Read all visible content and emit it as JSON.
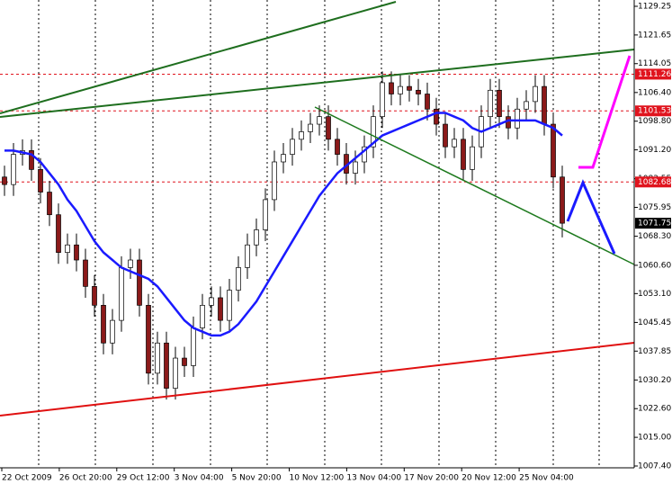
{
  "chart_data": {
    "type": "candlestick",
    "ylim": [
      1006.92,
      1130.92
    ],
    "yticks": [
      1129.25,
      1121.65,
      1114.05,
      {
        "value": 1106.4,
        "label": "1106.40"
      },
      {
        "value": 1098.8,
        "label": "1098.80"
      },
      {
        "value": 1091.2,
        "label": "1091.20"
      },
      1083.55,
      1075.95,
      {
        "value": 1068.3,
        "label": "1068.30"
      },
      {
        "value": 1060.6,
        "label": "1060.60"
      },
      {
        "value": 1053.1,
        "label": "1053.10"
      },
      1045.45,
      1037.85,
      {
        "value": 1030.2,
        "label": "1030.20"
      },
      {
        "value": 1022.6,
        "label": "1022.60"
      },
      {
        "value": 1015,
        "label": "1015.00"
      },
      {
        "value": 1007.4,
        "label": "1007.40"
      }
    ],
    "x_labels": [
      "22 Oct 2009",
      "26 Oct 20:00",
      "29 Oct 12:00",
      "3 Nov 04:00",
      "5 Nov 20:00",
      "10 Nov 12:00",
      "13 Nov 04:00",
      "17 Nov 20:00",
      "20 Nov 12:00",
      "25 Nov 04:00"
    ],
    "levels": [
      1111.26,
      1101.53,
      1082.68
    ],
    "last_price": 1071.75,
    "bull_color": "#ffffff",
    "bear_color": "#8b1a1a",
    "ma_color": "#1a1aff",
    "level_color": "#e0141e",
    "open": [
      1084,
      1082,
      1090,
      1091,
      1086,
      1080,
      1074,
      1064,
      1066,
      1062,
      1055,
      1050,
      1040,
      1046,
      1060,
      1062,
      1050,
      1032,
      1040,
      1028,
      1036,
      1034,
      1044,
      1050,
      1052,
      1046,
      1054,
      1060,
      1066,
      1070,
      1078,
      1088,
      1090,
      1094,
      1096,
      1098,
      1100,
      1094,
      1090,
      1085,
      1088,
      1092,
      1100,
      1109,
      1106,
      1108,
      1107,
      1106,
      1102,
      1098,
      1092,
      1094,
      1086,
      1092,
      1100,
      1107,
      1100,
      1097,
      1102,
      1104,
      1108,
      1098,
      1084
    ],
    "high": [
      1087,
      1093,
      1094,
      1094,
      1089,
      1083,
      1077,
      1069,
      1069,
      1065,
      1058,
      1053,
      1049,
      1063,
      1065,
      1065,
      1053,
      1043,
      1043,
      1039,
      1039,
      1047,
      1053,
      1055,
      1055,
      1057,
      1063,
      1069,
      1073,
      1081,
      1091,
      1093,
      1097,
      1099,
      1101,
      1103,
      1103,
      1097,
      1093,
      1091,
      1095,
      1103,
      1112,
      1112,
      1111,
      1111,
      1110,
      1109,
      1105,
      1101,
      1097,
      1097,
      1095,
      1103,
      1110,
      1110,
      1103,
      1105,
      1107,
      1111,
      1111,
      1101,
      1087
    ],
    "low": [
      1079,
      1079,
      1087,
      1083,
      1077,
      1071,
      1061,
      1061,
      1059,
      1052,
      1047,
      1037,
      1037,
      1043,
      1057,
      1047,
      1029,
      1029,
      1025,
      1025,
      1031,
      1031,
      1041,
      1047,
      1043,
      1043,
      1051,
      1057,
      1063,
      1067,
      1075,
      1085,
      1087,
      1091,
      1093,
      1095,
      1091,
      1087,
      1082,
      1082,
      1085,
      1089,
      1097,
      1103,
      1103,
      1104,
      1103,
      1099,
      1095,
      1089,
      1089,
      1083,
      1083,
      1089,
      1097,
      1097,
      1094,
      1094,
      1099,
      1101,
      1095,
      1081,
      1068
    ],
    "close": [
      1082,
      1090,
      1091,
      1086,
      1080,
      1074,
      1064,
      1066,
      1062,
      1055,
      1050,
      1040,
      1046,
      1060,
      1062,
      1050,
      1032,
      1040,
      1028,
      1036,
      1034,
      1044,
      1050,
      1052,
      1046,
      1054,
      1060,
      1066,
      1070,
      1078,
      1088,
      1090,
      1094,
      1096,
      1098,
      1100,
      1094,
      1090,
      1085,
      1088,
      1092,
      1100,
      1109,
      1106,
      1108,
      1107,
      1106,
      1102,
      1098,
      1092,
      1094,
      1086,
      1092,
      1100,
      1107,
      1100,
      1097,
      1102,
      1104,
      1108,
      1098,
      1084,
      1071.75
    ],
    "moving_average": [
      1091,
      1091,
      1090.5,
      1090,
      1088,
      1085,
      1082,
      1078,
      1075,
      1071,
      1067,
      1064,
      1062,
      1060,
      1059,
      1058,
      1057,
      1055,
      1052,
      1049,
      1046,
      1044,
      1043,
      1042,
      1042,
      1043,
      1045,
      1048,
      1051,
      1055,
      1059,
      1063,
      1067,
      1071,
      1075,
      1079,
      1082,
      1085,
      1087,
      1089,
      1091,
      1093,
      1095,
      1096,
      1097,
      1098,
      1099,
      1100,
      1101,
      1101,
      1100,
      1099,
      1097,
      1096,
      1097,
      1098,
      1099,
      1099,
      1099,
      1099,
      1098,
      1097,
      1095
    ]
  }
}
